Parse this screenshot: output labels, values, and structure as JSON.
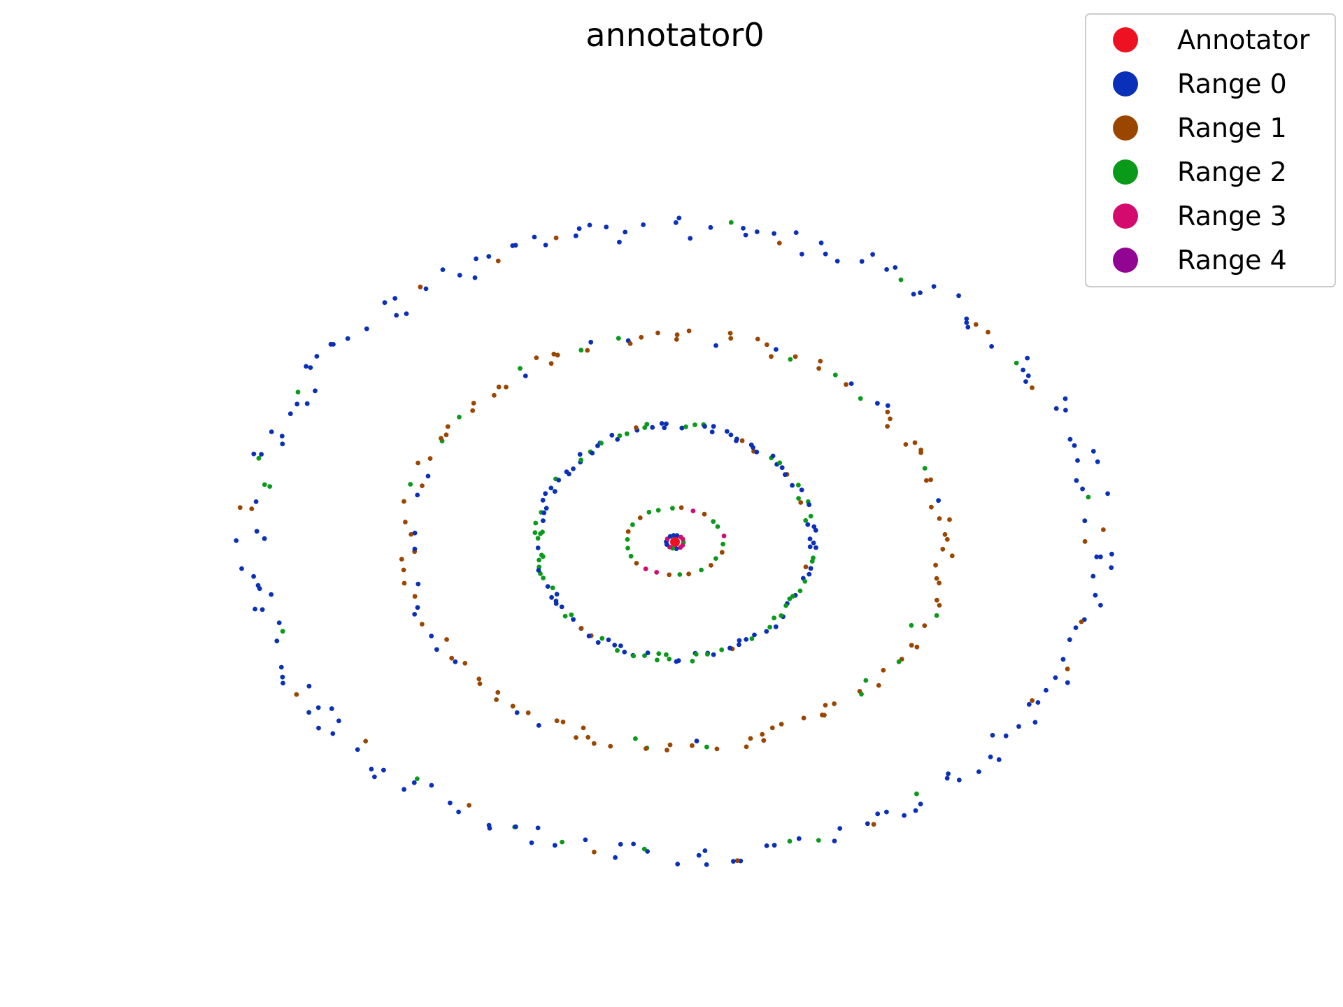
{
  "chart_data": {
    "type": "scatter",
    "title": "annotator0",
    "xlabel": "",
    "ylabel": "",
    "axes_visible": false,
    "grid": false,
    "xlim": [
      -1.25,
      1.25
    ],
    "ylim": [
      -1.25,
      1.25
    ],
    "legend_placement": "top-right",
    "rings": [
      {
        "name": "ring-0",
        "radius_x": 0.03,
        "radius_y": 0.03,
        "points": 14,
        "composition": {
          "Range 0": 0.55,
          "Range 2": 0.1,
          "Range 3": 0.35
        }
      },
      {
        "name": "ring-1",
        "radius_x": 0.17,
        "radius_y": 0.15,
        "points": 26,
        "composition": {
          "Range 1": 0.35,
          "Range 2": 0.4,
          "Range 3": 0.25
        }
      },
      {
        "name": "ring-2",
        "radius_x": 0.48,
        "radius_y": 0.52,
        "points": 150,
        "composition": {
          "Range 0": 0.55,
          "Range 1": 0.05,
          "Range 2": 0.4
        }
      },
      {
        "name": "ring-3",
        "radius_x": 0.94,
        "radius_y": 0.92,
        "points": 140,
        "composition": {
          "Range 0": 0.15,
          "Range 1": 0.75,
          "Range 2": 0.1
        }
      },
      {
        "name": "ring-4",
        "radius_x": 1.48,
        "radius_y": 1.4,
        "points": 200,
        "composition": {
          "Range 0": 0.82,
          "Range 1": 0.1,
          "Range 2": 0.08
        }
      }
    ],
    "series": [
      {
        "name": "Annotator",
        "color": "#ee1122",
        "points": [
          [
            0,
            0
          ]
        ]
      },
      {
        "name": "Range 0",
        "color": "#0a2fb8"
      },
      {
        "name": "Range 1",
        "color": "#9b4600"
      },
      {
        "name": "Range 2",
        "color": "#0a9a1a"
      },
      {
        "name": "Range 3",
        "color": "#d40a6e"
      },
      {
        "name": "Range 4",
        "color": "#920592"
      }
    ]
  }
}
